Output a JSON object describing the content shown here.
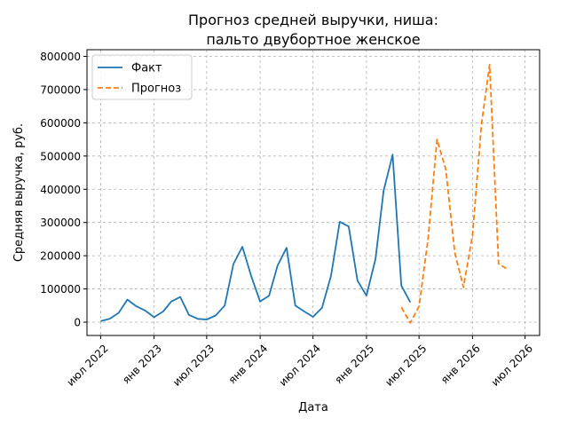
{
  "chart_data": {
    "type": "line",
    "title": [
      "Прогноз средней выручки, ниша:",
      "пальто двубортное женское"
    ],
    "xlabel": "Дата",
    "ylabel": "Средняя выручка, руб.",
    "ylim": [
      -40000,
      820000
    ],
    "yticks": [
      0,
      100000,
      200000,
      300000,
      400000,
      500000,
      600000,
      700000,
      800000
    ],
    "ytick_labels": [
      "0",
      "100000",
      "200000",
      "300000",
      "400000",
      "500000",
      "600000",
      "700000",
      "800000"
    ],
    "xlim": [
      "2022-05-15",
      "2026-08-20"
    ],
    "xticks": [
      "2022-07-01",
      "2023-01-01",
      "2023-07-01",
      "2024-01-01",
      "2024-07-01",
      "2025-01-01",
      "2025-07-01",
      "2026-01-01",
      "2026-07-01"
    ],
    "xtick_labels": [
      "июл 2022",
      "янв 2023",
      "июл 2023",
      "янв 2024",
      "июл 2024",
      "янв 2025",
      "июл 2025",
      "янв 2026",
      "июл 2026"
    ],
    "grid": true,
    "legend_position": "top-left",
    "series": [
      {
        "name": "Факт",
        "color": "#1f77b4",
        "style": "solid",
        "x": [
          "2022-07-01",
          "2022-08-01",
          "2022-09-01",
          "2022-10-01",
          "2022-11-01",
          "2022-12-01",
          "2023-01-01",
          "2023-02-01",
          "2023-03-01",
          "2023-04-01",
          "2023-05-01",
          "2023-06-01",
          "2023-07-01",
          "2023-08-01",
          "2023-09-01",
          "2023-10-01",
          "2023-11-01",
          "2023-12-01",
          "2024-01-01",
          "2024-02-01",
          "2024-03-01",
          "2024-04-01",
          "2024-05-01",
          "2024-06-01",
          "2024-07-01",
          "2024-08-01",
          "2024-09-01",
          "2024-10-01",
          "2024-11-01",
          "2024-12-01",
          "2025-01-01",
          "2025-02-01",
          "2025-03-01",
          "2025-04-01",
          "2025-05-01",
          "2025-06-01"
        ],
        "values": [
          3000,
          10000,
          28000,
          68000,
          48000,
          35000,
          15000,
          32000,
          62000,
          76000,
          22000,
          10000,
          8000,
          20000,
          50000,
          175000,
          227000,
          140000,
          62000,
          80000,
          170000,
          224000,
          50000,
          32000,
          16000,
          43000,
          140000,
          302000,
          288000,
          125000,
          80000,
          190000,
          395000,
          504000,
          110000,
          60000
        ]
      },
      {
        "name": "Прогноз",
        "color": "#ff7f0e",
        "style": "dashed",
        "x": [
          "2025-05-01",
          "2025-06-01",
          "2025-07-01",
          "2025-08-01",
          "2025-09-01",
          "2025-10-01",
          "2025-11-01",
          "2025-12-01",
          "2026-01-01",
          "2026-02-01",
          "2026-03-01",
          "2026-04-01",
          "2026-05-01",
          "2026-06-01"
        ],
        "values": [
          45000,
          -2000,
          48000,
          250000,
          550000,
          460000,
          210000,
          105000,
          262000,
          595000,
          775000,
          175000,
          160000,
          null
        ]
      }
    ]
  }
}
